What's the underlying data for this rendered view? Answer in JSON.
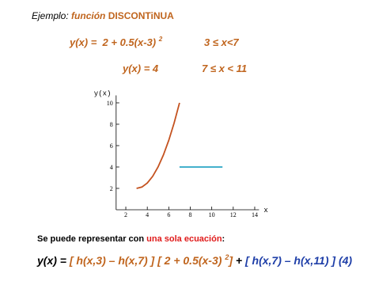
{
  "header": {
    "prefix": "Ejemplo:",
    "title_italic": "función",
    "title_bold": "DISCONTiNUA"
  },
  "equations": [
    {
      "lhs": "y(x) =  2 + 0.5(x-3)",
      "exponent": "2",
      "domain": "3 ≤ x<7"
    },
    {
      "lhs": "y(x) = 4",
      "domain": "7 ≤ x < 11"
    }
  ],
  "note": {
    "text": "Se puede representar con",
    "highlight": "una sola ecuación",
    "end": ":"
  },
  "formula": {
    "lhs": "y(x) =",
    "part1": "[ h(x,3) – h(x,7) ] [ 2 + 0.5(x-3)",
    "exponent": "2",
    "part1_end": "]",
    "plus": "+",
    "part2": "[ h(x,7) – h(x,11) ] (4)"
  },
  "chart_data": {
    "type": "line",
    "y_label": "y(x)",
    "x_label": "x",
    "xlim": [
      1.1,
      14.4
    ],
    "ylim": [
      0,
      10.7
    ],
    "xticks": [
      2,
      4,
      6,
      8,
      10,
      12,
      14
    ],
    "yticks": [
      2,
      4,
      6,
      8,
      10
    ],
    "series": [
      {
        "color": "#c4521f",
        "x": [
          3,
          3.5,
          4,
          4.5,
          5,
          5.5,
          6,
          6.5,
          7
        ],
        "values": [
          2,
          2.125,
          2.5,
          3.125,
          4,
          5.125,
          6.5,
          8.125,
          10
        ]
      },
      {
        "color": "#2aa6c4",
        "x": [
          7,
          11
        ],
        "values": [
          4,
          4
        ]
      }
    ]
  }
}
